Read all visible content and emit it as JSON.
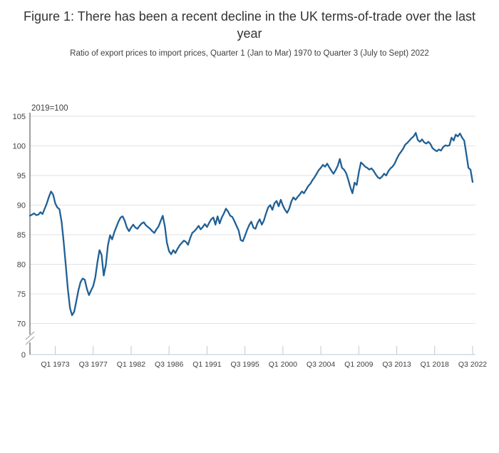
{
  "chart_data": {
    "type": "line",
    "title": "Figure 1: There has been a recent decline in the UK terms-of-trade over the last year",
    "subtitle": "Ratio of export prices to import prices, Quarter 1 (Jan to Mar) 1970 to Quarter 3 (July to Sept) 2022",
    "unit_label": "2019=100",
    "grid": "horizontal",
    "legend": "none",
    "x": {
      "start": "1970 Q1",
      "end": "2022 Q3",
      "frequency": "quarterly",
      "points": 211,
      "tick_labels": [
        "Q1 1973",
        "Q3 1977",
        "Q1 1982",
        "Q3 1986",
        "Q1 1991",
        "Q3 1995",
        "Q1 2000",
        "Q3 2004",
        "Q1 2009",
        "Q3 2013",
        "Q1 2018",
        "Q3 2022"
      ],
      "tick_indices": [
        12,
        30,
        48,
        66,
        84,
        102,
        120,
        138,
        156,
        174,
        192,
        210
      ]
    },
    "y": {
      "tick_values": [
        105,
        100,
        95,
        90,
        85,
        80,
        75,
        70
      ],
      "origin_label": "0",
      "axis_break": true,
      "value_min": 70,
      "value_max": 105
    },
    "series": [
      {
        "name": "UK terms of trade (ratio of export prices to import prices)",
        "color": "#206095",
        "values": [
          88.2,
          88.4,
          88.6,
          88.3,
          88.4,
          88.8,
          88.5,
          89.4,
          90.3,
          91.4,
          92.3,
          91.8,
          90.3,
          89.6,
          89.3,
          87.2,
          83.8,
          79.8,
          75.8,
          72.6,
          71.4,
          72.0,
          73.8,
          75.6,
          77.0,
          77.6,
          77.4,
          75.9,
          74.8,
          75.6,
          76.3,
          77.8,
          80.3,
          82.4,
          81.6,
          78.1,
          79.9,
          83.2,
          84.9,
          84.2,
          85.4,
          86.3,
          87.2,
          87.9,
          88.1,
          87.3,
          86.2,
          85.6,
          86.2,
          86.7,
          86.2,
          86.0,
          86.5,
          86.9,
          87.1,
          86.6,
          86.3,
          86.0,
          85.6,
          85.3,
          85.9,
          86.4,
          87.3,
          88.2,
          86.4,
          83.6,
          82.2,
          81.7,
          82.4,
          81.9,
          82.6,
          83.2,
          83.6,
          84.0,
          83.8,
          83.3,
          84.4,
          85.3,
          85.6,
          86.0,
          86.5,
          85.9,
          86.3,
          86.8,
          86.3,
          87.0,
          87.6,
          87.9,
          86.7,
          88.1,
          86.9,
          87.9,
          88.6,
          89.4,
          88.9,
          88.2,
          88.0,
          87.3,
          86.5,
          85.7,
          84.1,
          83.9,
          84.8,
          85.8,
          86.6,
          87.2,
          86.2,
          86.0,
          87.0,
          87.6,
          86.7,
          87.4,
          88.6,
          89.6,
          90.0,
          89.2,
          90.3,
          90.7,
          89.8,
          90.9,
          89.9,
          89.2,
          88.7,
          89.4,
          90.6,
          91.3,
          90.9,
          91.4,
          91.8,
          92.3,
          92.0,
          92.6,
          93.2,
          93.6,
          94.2,
          94.7,
          95.3,
          95.9,
          96.3,
          96.8,
          96.5,
          97.0,
          96.4,
          95.8,
          95.3,
          95.9,
          96.6,
          97.8,
          96.3,
          96.0,
          95.4,
          94.3,
          93.0,
          92.0,
          93.8,
          93.4,
          95.5,
          97.2,
          96.9,
          96.5,
          96.3,
          96.0,
          96.2,
          95.8,
          95.2,
          94.7,
          94.5,
          94.8,
          95.3,
          95.0,
          95.7,
          96.2,
          96.5,
          97.0,
          97.8,
          98.5,
          99.0,
          99.5,
          100.2,
          100.5,
          100.9,
          101.3,
          101.6,
          102.2,
          101.0,
          100.7,
          101.1,
          100.6,
          100.4,
          100.7,
          100.3,
          99.6,
          99.3,
          99.1,
          99.4,
          99.2,
          99.8,
          100.1,
          100.0,
          100.1,
          101.4,
          100.9,
          101.9,
          101.6,
          102.1,
          101.4,
          100.9,
          98.7,
          96.3,
          96.0,
          93.9
        ]
      }
    ],
    "colors": {
      "line": "#206095",
      "grid": "#e2e2e2",
      "y_axis": "#414042",
      "x_axis": "#b9c9d8",
      "axis_break": "#9b9b9b",
      "text": "#414042",
      "title": "#333333"
    }
  }
}
